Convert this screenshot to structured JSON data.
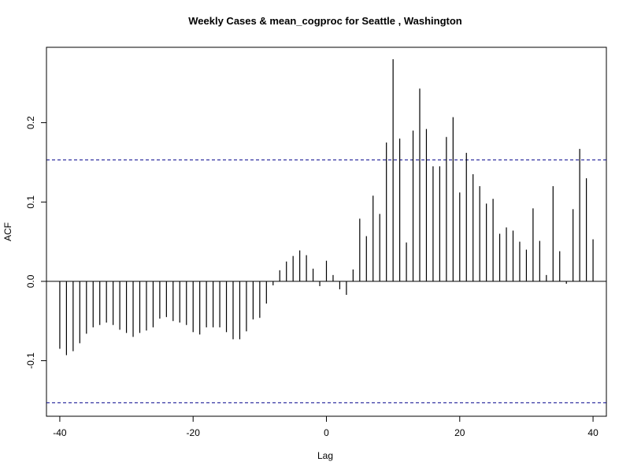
{
  "chart_data": {
    "type": "bar",
    "title": "Weekly Cases & mean_cogproc for Seattle , Washington",
    "xlabel": "Lag",
    "ylabel": "ACF",
    "xlim": [
      -42,
      42
    ],
    "ylim": [
      -0.17,
      0.295
    ],
    "x_ticks": [
      -40,
      -20,
      0,
      20,
      40
    ],
    "y_ticks": [
      -0.1,
      0.0,
      0.1,
      0.2
    ],
    "x_tick_labels": [
      "-40",
      "-20",
      "0",
      "20",
      "40"
    ],
    "y_tick_labels": [
      "-0.1",
      "0.0",
      "0.1",
      "0.2"
    ],
    "confidence_limit": 0.153,
    "confidence_line_color": "#00008b",
    "line_color": "#000000",
    "lags": [
      -40,
      -39,
      -38,
      -37,
      -36,
      -35,
      -34,
      -33,
      -32,
      -31,
      -30,
      -29,
      -28,
      -27,
      -26,
      -25,
      -24,
      -23,
      -22,
      -21,
      -20,
      -19,
      -18,
      -17,
      -16,
      -15,
      -14,
      -13,
      -12,
      -11,
      -10,
      -9,
      -8,
      -7,
      -6,
      -5,
      -4,
      -3,
      -2,
      -1,
      0,
      1,
      2,
      3,
      4,
      5,
      6,
      7,
      8,
      9,
      10,
      11,
      12,
      13,
      14,
      15,
      16,
      17,
      18,
      19,
      20,
      21,
      22,
      23,
      24,
      25,
      26,
      27,
      28,
      29,
      30,
      31,
      32,
      33,
      34,
      35,
      36,
      37,
      38,
      39,
      40
    ],
    "values": [
      -0.085,
      -0.093,
      -0.088,
      -0.078,
      -0.066,
      -0.058,
      -0.055,
      -0.052,
      -0.055,
      -0.061,
      -0.065,
      -0.07,
      -0.065,
      -0.062,
      -0.058,
      -0.047,
      -0.045,
      -0.05,
      -0.052,
      -0.055,
      -0.064,
      -0.067,
      -0.058,
      -0.058,
      -0.058,
      -0.064,
      -0.073,
      -0.073,
      -0.063,
      -0.048,
      -0.046,
      -0.028,
      -0.005,
      0.014,
      0.025,
      0.032,
      0.039,
      0.033,
      0.016,
      -0.006,
      0.026,
      0.008,
      -0.01,
      -0.017,
      0.015,
      0.079,
      0.057,
      0.108,
      0.085,
      0.175,
      0.28,
      0.18,
      0.049,
      0.19,
      0.243,
      0.192,
      0.145,
      0.145,
      0.182,
      0.207,
      0.112,
      0.162,
      0.135,
      0.12,
      0.098,
      0.104,
      0.06,
      0.068,
      0.064,
      0.05,
      0.04,
      0.092,
      0.051,
      0.008,
      0.12,
      0.038,
      -0.003,
      0.091,
      0.167,
      0.13,
      0.053
    ]
  }
}
